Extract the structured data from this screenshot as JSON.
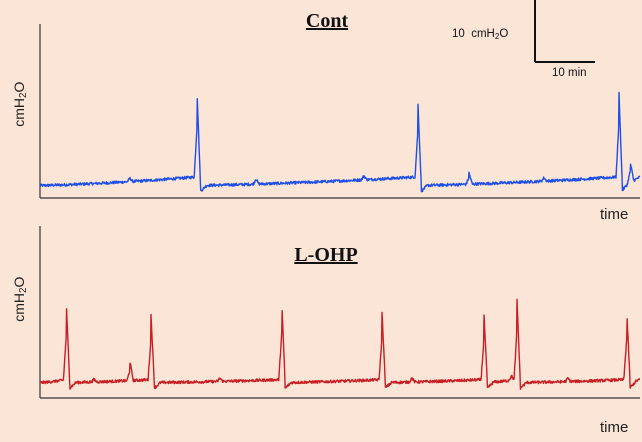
{
  "chart_data": [
    {
      "type": "line",
      "title": "Cont",
      "xlabel": "time",
      "ylabel_prefix": "cmH",
      "ylabel_sub": "2",
      "ylabel_suffix": "O",
      "color": "#1F4FE8",
      "baseline": 2.0,
      "drift_end": 4.8,
      "spikes": [
        {
          "t": 26.2,
          "height": 14.5
        },
        {
          "t": 63.0,
          "height": 13.0
        },
        {
          "t": 71.5,
          "height": 1.8
        },
        {
          "t": 96.5,
          "height": 14.8
        },
        {
          "t": 98.4,
          "height": 3.0
        }
      ],
      "minor_bumps": [
        {
          "t": 15.0,
          "height": 0.5
        },
        {
          "t": 36.0,
          "height": 0.8
        },
        {
          "t": 54.0,
          "height": 0.6
        },
        {
          "t": 84.0,
          "height": 0.5
        }
      ],
      "xlim": [
        0,
        100
      ],
      "ylim": [
        0,
        28
      ],
      "scale_bar": {
        "y_value": 10,
        "y_unit_prefix": "cmH",
        "y_unit_sub": "2",
        "y_unit_suffix": "O",
        "y_label_prefix": "10",
        "x_value": 10,
        "x_label": "10   min"
      }
    },
    {
      "type": "line",
      "title": "L-OHP",
      "xlabel": "time",
      "ylabel_prefix": "cmH",
      "ylabel_sub": "2",
      "ylabel_suffix": "O",
      "color": "#C81E24",
      "baseline": 2.5,
      "drift_end": 3.5,
      "spikes": [
        {
          "t": 4.4,
          "height": 12.5
        },
        {
          "t": 15.0,
          "height": 3.0
        },
        {
          "t": 18.5,
          "height": 11.0
        },
        {
          "t": 40.3,
          "height": 13.0
        },
        {
          "t": 57.0,
          "height": 11.5
        },
        {
          "t": 74.0,
          "height": 11.0
        },
        {
          "t": 78.5,
          "height": 0.8
        },
        {
          "t": 79.5,
          "height": 13.5
        },
        {
          "t": 97.8,
          "height": 11.5
        }
      ],
      "minor_bumps": [
        {
          "t": 9.0,
          "height": 0.4
        },
        {
          "t": 30.0,
          "height": 0.5
        },
        {
          "t": 62.0,
          "height": 0.6
        },
        {
          "t": 88.0,
          "height": 0.5
        }
      ],
      "xlim": [
        0,
        100
      ],
      "ylim": [
        0,
        28
      ]
    }
  ]
}
